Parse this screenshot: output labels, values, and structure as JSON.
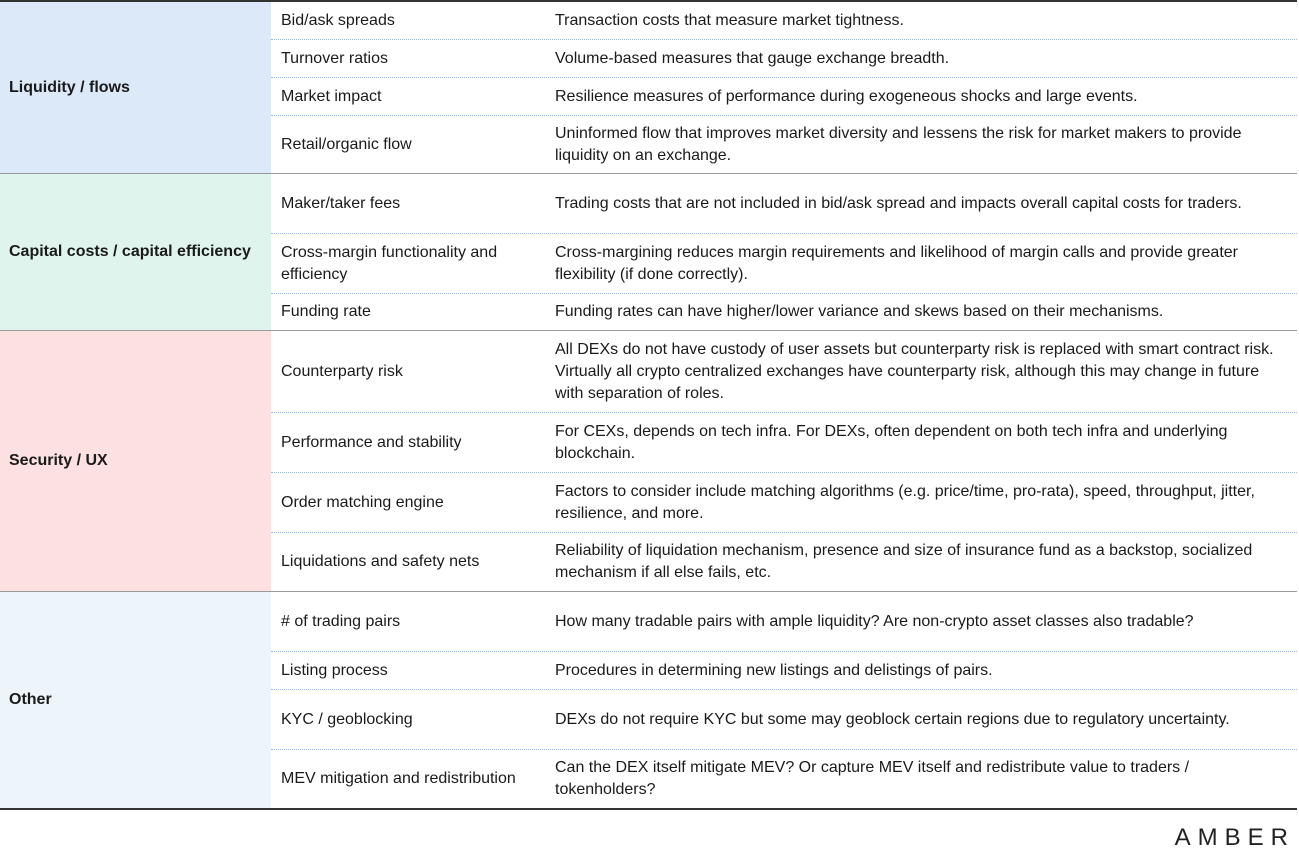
{
  "groups": [
    {
      "category": "Liquidity / flows",
      "color": "#dce9f8",
      "rows": [
        {
          "metric": "Bid/ask spreads",
          "description": "Transaction costs that measure market tightness."
        },
        {
          "metric": "Turnover ratios",
          "description": "Volume-based measures that gauge exchange breadth."
        },
        {
          "metric": "Market impact",
          "description": "Resilience measures of performance during exogeneous shocks and large events."
        },
        {
          "metric": "Retail/organic flow",
          "description": "Uninformed flow that improves market diversity and lessens the risk for market makers to provide liquidity on an exchange."
        }
      ]
    },
    {
      "category": "Capital costs / capital efficiency",
      "color": "#e0f4ee",
      "rows": [
        {
          "metric": "Maker/taker fees",
          "description": "Trading costs that are not included in bid/ask spread and impacts overall capital costs for traders."
        },
        {
          "metric": "Cross-margin functionality and efficiency",
          "description": "Cross-margining reduces margin requirements and likelihood of margin calls and provide greater flexibility (if done correctly)."
        },
        {
          "metric": "Funding rate",
          "description": "Funding rates can have higher/lower variance and skews based on their mechanisms."
        }
      ]
    },
    {
      "category": "Security / UX",
      "color": "#fde0e0",
      "rows": [
        {
          "metric": "Counterparty risk",
          "description": "All DEXs do not have custody of user assets but counterparty risk is replaced with smart contract risk. Virtually all crypto centralized exchanges have counterparty risk, although this may change in future with separation of roles."
        },
        {
          "metric": "Performance and stability",
          "description": "For CEXs, depends on tech infra. For DEXs, often dependent on both tech infra and underlying blockchain."
        },
        {
          "metric": "Order matching engine",
          "description": "Factors to consider include matching algorithms (e.g. price/time, pro-rata), speed, throughput, jitter, resilience, and more."
        },
        {
          "metric": "Liquidations and safety nets",
          "description": "Reliability of liquidation mechanism, presence and size of insurance fund as a backstop, socialized mechanism if all else fails, etc."
        }
      ]
    },
    {
      "category": "Other",
      "color": "#edf4fa",
      "rows": [
        {
          "metric": "# of trading pairs",
          "description": "How many tradable pairs with ample liquidity? Are non-crypto asset classes also tradable?"
        },
        {
          "metric": "Listing process",
          "description": "Procedures in determining new listings and delistings of pairs."
        },
        {
          "metric": "KYC / geoblocking",
          "description": "DEXs do not require KYC but some may geoblock certain regions due to regulatory uncertainty."
        },
        {
          "metric": "MEV mitigation and redistribution",
          "description": "Can the DEX itself mitigate MEV? Or capture MEV itself and redistribute value to traders / tokenholders?"
        }
      ]
    }
  ],
  "logo": "AMBER"
}
